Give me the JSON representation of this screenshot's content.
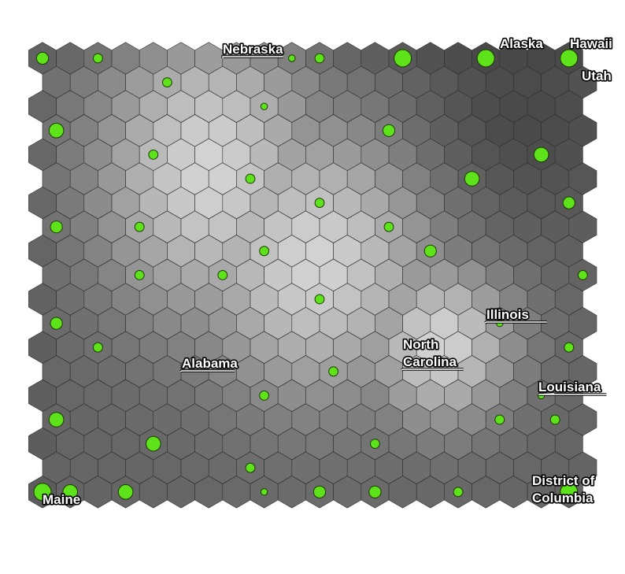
{
  "chart_data": {
    "type": "heatmap",
    "title": "",
    "grid": {
      "columns": 20,
      "rows": 18
    },
    "colors": {
      "hit_marker": "#5ee31a",
      "low": "#404040",
      "high": "#e3e3e3"
    },
    "hit_nodes": [
      {
        "col": 0,
        "row": 0,
        "hits": 3
      },
      {
        "col": 2,
        "row": 0,
        "hits": 2
      },
      {
        "col": 9,
        "row": 0,
        "hits": 1
      },
      {
        "col": 10,
        "row": 0,
        "hits": 2
      },
      {
        "col": 13,
        "row": 0,
        "hits": 5
      },
      {
        "col": 16,
        "row": 0,
        "hits": 5
      },
      {
        "col": 19,
        "row": 0,
        "hits": 5
      },
      {
        "col": 4,
        "row": 1,
        "hits": 2
      },
      {
        "col": 8,
        "row": 2,
        "hits": 1
      },
      {
        "col": 0,
        "row": 3,
        "hits": 4
      },
      {
        "col": 12,
        "row": 3,
        "hits": 3
      },
      {
        "col": 4,
        "row": 4,
        "hits": 2
      },
      {
        "col": 18,
        "row": 4,
        "hits": 4
      },
      {
        "col": 7,
        "row": 5,
        "hits": 2
      },
      {
        "col": 15,
        "row": 5,
        "hits": 4
      },
      {
        "col": 10,
        "row": 6,
        "hits": 2
      },
      {
        "col": 19,
        "row": 6,
        "hits": 3
      },
      {
        "col": 0,
        "row": 7,
        "hits": 3
      },
      {
        "col": 3,
        "row": 7,
        "hits": 2
      },
      {
        "col": 12,
        "row": 7,
        "hits": 2
      },
      {
        "col": 8,
        "row": 8,
        "hits": 2
      },
      {
        "col": 14,
        "row": 8,
        "hits": 3
      },
      {
        "col": 3,
        "row": 9,
        "hits": 2
      },
      {
        "col": 6,
        "row": 9,
        "hits": 2
      },
      {
        "col": 19,
        "row": 9,
        "hits": 2
      },
      {
        "col": 10,
        "row": 10,
        "hits": 2
      },
      {
        "col": 0,
        "row": 11,
        "hits": 3
      },
      {
        "col": 16,
        "row": 11,
        "hits": 1
      },
      {
        "col": 2,
        "row": 12,
        "hits": 2
      },
      {
        "col": 19,
        "row": 12,
        "hits": 2
      },
      {
        "col": 10,
        "row": 13,
        "hits": 2
      },
      {
        "col": 18,
        "row": 14,
        "hits": 1
      },
      {
        "col": 8,
        "row": 14,
        "hits": 2
      },
      {
        "col": 0,
        "row": 15,
        "hits": 4
      },
      {
        "col": 16,
        "row": 15,
        "hits": 2
      },
      {
        "col": 18,
        "row": 15,
        "hits": 2
      },
      {
        "col": 4,
        "row": 16,
        "hits": 4
      },
      {
        "col": 12,
        "row": 16,
        "hits": 2
      },
      {
        "col": 7,
        "row": 17,
        "hits": 2
      },
      {
        "col": 0,
        "row": 18,
        "hits": 5
      },
      {
        "col": 1,
        "row": 18,
        "hits": 4
      },
      {
        "col": 3,
        "row": 18,
        "hits": 4
      },
      {
        "col": 8,
        "row": 18,
        "hits": 1
      },
      {
        "col": 10,
        "row": 18,
        "hits": 3
      },
      {
        "col": 12,
        "row": 18,
        "hits": 3
      },
      {
        "col": 15,
        "row": 18,
        "hits": 2
      },
      {
        "col": 19,
        "row": 18,
        "hits": 5
      }
    ],
    "annotations": [
      {
        "text": "Nebraska",
        "lines": [
          "Nebraska"
        ],
        "underlined": true
      },
      {
        "text": "Alaska",
        "lines": [
          "Alaska"
        ],
        "underlined": false
      },
      {
        "text": "Hawaii",
        "lines": [
          "Hawaii"
        ],
        "underlined": false
      },
      {
        "text": "Utah",
        "lines": [
          "Utah"
        ],
        "underlined": false
      },
      {
        "text": "Illinois",
        "lines": [
          "Illinois"
        ],
        "underlined": true
      },
      {
        "text": "North Carolina",
        "lines": [
          "North",
          "Carolina"
        ],
        "underlined": true
      },
      {
        "text": "Alabama",
        "lines": [
          "Alabama"
        ],
        "underlined": true
      },
      {
        "text": "Louisiana",
        "lines": [
          "Louisiana"
        ],
        "underlined": true
      },
      {
        "text": "District of Columbia",
        "lines": [
          "District of",
          "Columbia"
        ],
        "underlined": false
      },
      {
        "text": "Maine",
        "lines": [
          "Maine"
        ],
        "underlined": false
      }
    ]
  }
}
